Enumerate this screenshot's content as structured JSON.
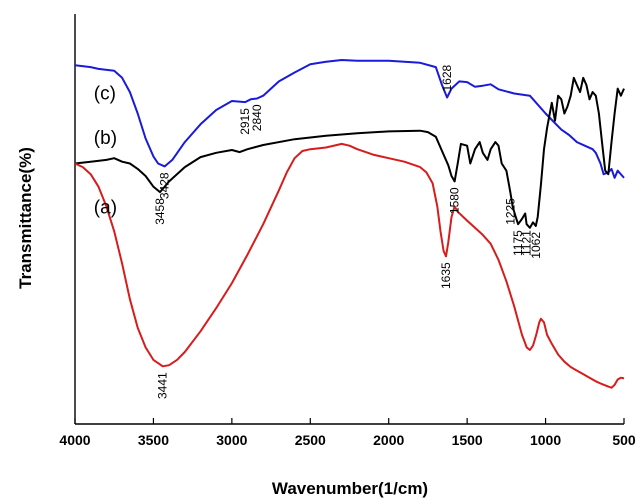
{
  "chart_data": {
    "type": "line",
    "title": "",
    "xlabel": "Wavenumber(1/cm)",
    "ylabel": "Transmittance(%)",
    "xlim": [
      4000,
      500
    ],
    "x_reversed": true,
    "x_ticks": [
      4000,
      3500,
      3000,
      2500,
      2000,
      1500,
      1000,
      500
    ],
    "y_ticks_shown": false,
    "grid": false,
    "legend": "inline labels at left",
    "series": [
      {
        "name": "(c)",
        "color": "#1a1adb",
        "points": [
          [
            4000,
            0.915
          ],
          [
            3900,
            0.91
          ],
          [
            3850,
            0.905
          ],
          [
            3750,
            0.9
          ],
          [
            3700,
            0.88
          ],
          [
            3650,
            0.84
          ],
          [
            3600,
            0.78
          ],
          [
            3550,
            0.71
          ],
          [
            3500,
            0.66
          ],
          [
            3470,
            0.64
          ],
          [
            3428,
            0.632
          ],
          [
            3380,
            0.65
          ],
          [
            3300,
            0.7
          ],
          [
            3200,
            0.75
          ],
          [
            3100,
            0.79
          ],
          [
            3000,
            0.815
          ],
          [
            2915,
            0.812
          ],
          [
            2880,
            0.82
          ],
          [
            2840,
            0.822
          ],
          [
            2800,
            0.83
          ],
          [
            2700,
            0.87
          ],
          [
            2600,
            0.895
          ],
          [
            2500,
            0.918
          ],
          [
            2400,
            0.925
          ],
          [
            2300,
            0.93
          ],
          [
            2200,
            0.928
          ],
          [
            2000,
            0.928
          ],
          [
            1900,
            0.925
          ],
          [
            1800,
            0.922
          ],
          [
            1700,
            0.91
          ],
          [
            1660,
            0.86
          ],
          [
            1628,
            0.825
          ],
          [
            1600,
            0.85
          ],
          [
            1550,
            0.87
          ],
          [
            1500,
            0.868
          ],
          [
            1450,
            0.855
          ],
          [
            1400,
            0.858
          ],
          [
            1350,
            0.862
          ],
          [
            1300,
            0.848
          ],
          [
            1200,
            0.836
          ],
          [
            1100,
            0.83
          ],
          [
            1000,
            0.78
          ],
          [
            900,
            0.735
          ],
          [
            850,
            0.72
          ],
          [
            800,
            0.7
          ],
          [
            750,
            0.69
          ],
          [
            700,
            0.68
          ],
          [
            680,
            0.67
          ],
          [
            650,
            0.64
          ],
          [
            630,
            0.61
          ],
          [
            600,
            0.615
          ],
          [
            580,
            0.625
          ],
          [
            560,
            0.6
          ],
          [
            540,
            0.62
          ],
          [
            510,
            0.605
          ],
          [
            500,
            0.6
          ]
        ]
      },
      {
        "name": "(b)",
        "color": "#000000",
        "points": [
          [
            4000,
            0.64
          ],
          [
            3900,
            0.645
          ],
          [
            3800,
            0.65
          ],
          [
            3750,
            0.655
          ],
          [
            3700,
            0.645
          ],
          [
            3650,
            0.64
          ],
          [
            3600,
            0.625
          ],
          [
            3550,
            0.605
          ],
          [
            3500,
            0.575
          ],
          [
            3458,
            0.56
          ],
          [
            3400,
            0.59
          ],
          [
            3300,
            0.63
          ],
          [
            3200,
            0.658
          ],
          [
            3100,
            0.67
          ],
          [
            3000,
            0.678
          ],
          [
            2950,
            0.672
          ],
          [
            2900,
            0.68
          ],
          [
            2800,
            0.692
          ],
          [
            2600,
            0.708
          ],
          [
            2400,
            0.718
          ],
          [
            2200,
            0.725
          ],
          [
            2000,
            0.73
          ],
          [
            1800,
            0.732
          ],
          [
            1750,
            0.728
          ],
          [
            1700,
            0.715
          ],
          [
            1650,
            0.665
          ],
          [
            1620,
            0.635
          ],
          [
            1600,
            0.605
          ],
          [
            1580,
            0.59
          ],
          [
            1560,
            0.64
          ],
          [
            1540,
            0.695
          ],
          [
            1500,
            0.69
          ],
          [
            1480,
            0.64
          ],
          [
            1450,
            0.68
          ],
          [
            1420,
            0.7
          ],
          [
            1400,
            0.67
          ],
          [
            1370,
            0.65
          ],
          [
            1350,
            0.68
          ],
          [
            1320,
            0.7
          ],
          [
            1300,
            0.69
          ],
          [
            1280,
            0.64
          ],
          [
            1250,
            0.62
          ],
          [
            1225,
            0.56
          ],
          [
            1210,
            0.52
          ],
          [
            1190,
            0.49
          ],
          [
            1175,
            0.47
          ],
          [
            1150,
            0.485
          ],
          [
            1130,
            0.5
          ],
          [
            1121,
            0.47
          ],
          [
            1100,
            0.46
          ],
          [
            1080,
            0.475
          ],
          [
            1062,
            0.465
          ],
          [
            1050,
            0.49
          ],
          [
            1030,
            0.58
          ],
          [
            1010,
            0.68
          ],
          [
            990,
            0.74
          ],
          [
            960,
            0.81
          ],
          [
            940,
            0.76
          ],
          [
            920,
            0.83
          ],
          [
            900,
            0.82
          ],
          [
            880,
            0.78
          ],
          [
            860,
            0.8
          ],
          [
            840,
            0.83
          ],
          [
            820,
            0.88
          ],
          [
            800,
            0.86
          ],
          [
            780,
            0.84
          ],
          [
            760,
            0.88
          ],
          [
            740,
            0.86
          ],
          [
            720,
            0.82
          ],
          [
            700,
            0.84
          ],
          [
            680,
            0.83
          ],
          [
            660,
            0.78
          ],
          [
            640,
            0.7
          ],
          [
            620,
            0.62
          ],
          [
            600,
            0.61
          ],
          [
            580,
            0.7
          ],
          [
            560,
            0.78
          ],
          [
            540,
            0.85
          ],
          [
            520,
            0.83
          ],
          [
            500,
            0.85
          ]
        ]
      },
      {
        "name": "(a)",
        "color": "#d81c1c",
        "points": [
          [
            4000,
            0.64
          ],
          [
            3950,
            0.63
          ],
          [
            3900,
            0.61
          ],
          [
            3850,
            0.575
          ],
          [
            3800,
            0.52
          ],
          [
            3750,
            0.45
          ],
          [
            3700,
            0.36
          ],
          [
            3650,
            0.26
          ],
          [
            3600,
            0.18
          ],
          [
            3550,
            0.125
          ],
          [
            3500,
            0.09
          ],
          [
            3460,
            0.078
          ],
          [
            3441,
            0.072
          ],
          [
            3400,
            0.075
          ],
          [
            3350,
            0.09
          ],
          [
            3300,
            0.112
          ],
          [
            3200,
            0.17
          ],
          [
            3100,
            0.235
          ],
          [
            3000,
            0.305
          ],
          [
            2900,
            0.385
          ],
          [
            2800,
            0.47
          ],
          [
            2700,
            0.565
          ],
          [
            2650,
            0.615
          ],
          [
            2600,
            0.655
          ],
          [
            2550,
            0.675
          ],
          [
            2500,
            0.68
          ],
          [
            2400,
            0.685
          ],
          [
            2300,
            0.695
          ],
          [
            2250,
            0.69
          ],
          [
            2200,
            0.68
          ],
          [
            2100,
            0.665
          ],
          [
            2000,
            0.655
          ],
          [
            1900,
            0.645
          ],
          [
            1800,
            0.63
          ],
          [
            1760,
            0.615
          ],
          [
            1720,
            0.585
          ],
          [
            1690,
            0.52
          ],
          [
            1670,
            0.45
          ],
          [
            1650,
            0.395
          ],
          [
            1635,
            0.38
          ],
          [
            1620,
            0.42
          ],
          [
            1600,
            0.49
          ],
          [
            1580,
            0.52
          ],
          [
            1560,
            0.505
          ],
          [
            1500,
            0.48
          ],
          [
            1450,
            0.46
          ],
          [
            1400,
            0.44
          ],
          [
            1350,
            0.415
          ],
          [
            1300,
            0.37
          ],
          [
            1250,
            0.31
          ],
          [
            1200,
            0.24
          ],
          [
            1150,
            0.16
          ],
          [
            1120,
            0.125
          ],
          [
            1100,
            0.118
          ],
          [
            1080,
            0.13
          ],
          [
            1060,
            0.16
          ],
          [
            1040,
            0.195
          ],
          [
            1030,
            0.205
          ],
          [
            1010,
            0.195
          ],
          [
            990,
            0.16
          ],
          [
            960,
            0.135
          ],
          [
            920,
            0.105
          ],
          [
            880,
            0.085
          ],
          [
            840,
            0.07
          ],
          [
            800,
            0.06
          ],
          [
            760,
            0.05
          ],
          [
            720,
            0.04
          ],
          [
            680,
            0.03
          ],
          [
            640,
            0.022
          ],
          [
            600,
            0.015
          ],
          [
            580,
            0.012
          ],
          [
            560,
            0.02
          ],
          [
            540,
            0.035
          ],
          [
            520,
            0.04
          ],
          [
            500,
            0.038
          ]
        ]
      }
    ],
    "peak_labels": [
      {
        "text": "3428",
        "x": 3428,
        "y": 0.632,
        "series": "(c)",
        "side": "below"
      },
      {
        "text": "2915",
        "x": 2915,
        "y": 0.812,
        "series": "(c)",
        "side": "below"
      },
      {
        "text": "2840",
        "x": 2840,
        "y": 0.822,
        "series": "(c)",
        "side": "below"
      },
      {
        "text": "1628",
        "x": 1628,
        "y": 0.825,
        "series": "(c)",
        "side": "above"
      },
      {
        "text": "3458",
        "x": 3458,
        "y": 0.56,
        "series": "(b)",
        "side": "below"
      },
      {
        "text": "1580",
        "x": 1580,
        "y": 0.59,
        "series": "(b)",
        "side": "below"
      },
      {
        "text": "1225",
        "x": 1225,
        "y": 0.56,
        "series": "(b)",
        "side": "below"
      },
      {
        "text": "1175",
        "x": 1175,
        "y": 0.47,
        "series": "(b)",
        "side": "below"
      },
      {
        "text": "1121",
        "x": 1121,
        "y": 0.47,
        "series": "(b)",
        "side": "below"
      },
      {
        "text": "1062",
        "x": 1062,
        "y": 0.465,
        "series": "(b)",
        "side": "below"
      },
      {
        "text": "1635",
        "x": 1635,
        "y": 0.38,
        "series": "(a)",
        "side": "below"
      },
      {
        "text": "3441",
        "x": 3441,
        "y": 0.072,
        "series": "(a)",
        "side": "below"
      }
    ],
    "series_labels": [
      {
        "text": "(c)",
        "series": "(c)",
        "x": 3880,
        "y": 0.82
      },
      {
        "text": "(b)",
        "series": "(b)",
        "x": 3880,
        "y": 0.695
      },
      {
        "text": "(a)",
        "series": "(a)",
        "x": 3880,
        "y": 0.5
      }
    ]
  }
}
